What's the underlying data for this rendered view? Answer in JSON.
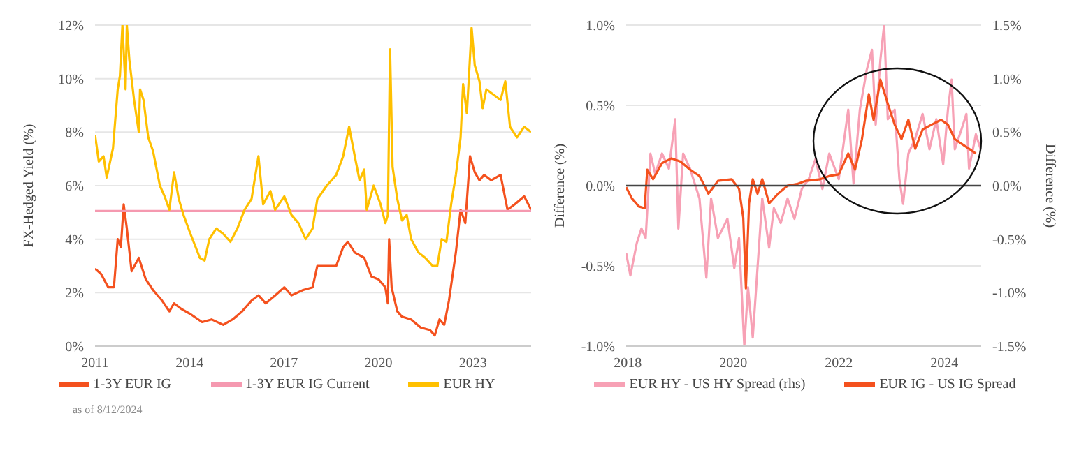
{
  "chart_data": [
    {
      "type": "line",
      "ylabel": "FX-Hedged Yield (%)",
      "xlim": [
        2011,
        2024.85
      ],
      "xticks": [
        2011,
        2014,
        2017,
        2020,
        2023
      ],
      "ylim": [
        0,
        12
      ],
      "yticks": [
        {
          "value": 0,
          "label": "0%"
        },
        {
          "value": 2,
          "label": "2%"
        },
        {
          "value": 4,
          "label": "4%"
        },
        {
          "value": 6,
          "label": "6%"
        },
        {
          "value": 8,
          "label": "8%"
        },
        {
          "value": 10,
          "label": "10%"
        },
        {
          "value": 12,
          "label": "12%"
        }
      ],
      "grid": "y",
      "legend": "bottom",
      "annotations": [
        "as of 8/12/2024"
      ],
      "series": [
        {
          "name": "1-3Y EUR IG",
          "color": "#f4511e",
          "x": [
            2011.0,
            2011.19,
            2011.42,
            2011.6,
            2011.72,
            2011.82,
            2011.91,
            2012.01,
            2012.16,
            2012.39,
            2012.61,
            2012.84,
            2013.13,
            2013.36,
            2013.51,
            2013.73,
            2014.03,
            2014.4,
            2014.7,
            2015.07,
            2015.37,
            2015.67,
            2015.97,
            2016.19,
            2016.42,
            2016.72,
            2017.01,
            2017.24,
            2017.61,
            2017.91,
            2018.06,
            2018.36,
            2018.66,
            2018.88,
            2019.03,
            2019.25,
            2019.55,
            2019.78,
            2020.0,
            2020.22,
            2020.3,
            2020.34,
            2020.42,
            2020.6,
            2020.75,
            2021.04,
            2021.34,
            2021.64,
            2021.79,
            2021.94,
            2022.09,
            2022.24,
            2022.46,
            2022.61,
            2022.76,
            2022.91,
            2023.06,
            2023.21,
            2023.36,
            2023.58,
            2023.88,
            2024.1,
            2024.33,
            2024.63,
            2024.85
          ],
          "values": [
            2.9,
            2.7,
            2.2,
            2.2,
            4.0,
            3.7,
            5.3,
            4.4,
            2.8,
            3.3,
            2.5,
            2.1,
            1.7,
            1.3,
            1.6,
            1.4,
            1.2,
            0.9,
            1.0,
            0.8,
            1.0,
            1.3,
            1.7,
            1.9,
            1.6,
            1.9,
            2.2,
            1.9,
            2.1,
            2.2,
            3.0,
            3.0,
            3.0,
            3.7,
            3.9,
            3.5,
            3.3,
            2.6,
            2.5,
            2.2,
            1.6,
            4.0,
            2.2,
            1.3,
            1.1,
            1.0,
            0.7,
            0.6,
            0.4,
            1.0,
            0.8,
            1.7,
            3.5,
            5.1,
            4.6,
            7.1,
            6.5,
            6.2,
            6.4,
            6.2,
            6.4,
            5.1,
            5.3,
            5.6,
            5.1
          ]
        },
        {
          "name": "1-3Y EUR IG Current",
          "color": "#f599b0",
          "x": [
            2011,
            2024.85
          ],
          "values": [
            5.05,
            5.05
          ]
        },
        {
          "name": "EUR HY",
          "color": "#ffc000",
          "x": [
            2011.0,
            2011.12,
            2011.27,
            2011.37,
            2011.57,
            2011.72,
            2011.79,
            2011.87,
            2011.97,
            2012.01,
            2012.09,
            2012.24,
            2012.39,
            2012.43,
            2012.54,
            2012.69,
            2012.84,
            2013.06,
            2013.21,
            2013.36,
            2013.51,
            2013.66,
            2013.81,
            2014.03,
            2014.33,
            2014.48,
            2014.63,
            2014.85,
            2015.07,
            2015.3,
            2015.52,
            2015.75,
            2015.97,
            2016.19,
            2016.34,
            2016.57,
            2016.72,
            2017.01,
            2017.24,
            2017.46,
            2017.69,
            2017.91,
            2018.06,
            2018.36,
            2018.66,
            2018.88,
            2019.07,
            2019.25,
            2019.4,
            2019.55,
            2019.63,
            2019.85,
            2020.07,
            2020.22,
            2020.3,
            2020.37,
            2020.45,
            2020.6,
            2020.75,
            2020.9,
            2021.04,
            2021.27,
            2021.49,
            2021.72,
            2021.87,
            2022.01,
            2022.16,
            2022.31,
            2022.46,
            2022.61,
            2022.69,
            2022.81,
            2022.96,
            2023.06,
            2023.21,
            2023.31,
            2023.43,
            2023.66,
            2023.88,
            2024.03,
            2024.18,
            2024.4,
            2024.63,
            2024.85
          ],
          "values": [
            7.9,
            6.9,
            7.1,
            6.3,
            7.4,
            9.6,
            10.1,
            12.0,
            9.6,
            12.0,
            10.7,
            9.2,
            8.0,
            9.6,
            9.2,
            7.8,
            7.3,
            6.0,
            5.6,
            5.1,
            6.5,
            5.5,
            4.9,
            4.2,
            3.3,
            3.2,
            4.0,
            4.4,
            4.2,
            3.9,
            4.4,
            5.1,
            5.5,
            7.1,
            5.3,
            5.8,
            5.1,
            5.6,
            4.9,
            4.6,
            4.0,
            4.4,
            5.5,
            6.0,
            6.4,
            7.1,
            8.2,
            7.1,
            6.2,
            6.6,
            5.1,
            6.0,
            5.3,
            4.6,
            4.9,
            11.1,
            6.7,
            5.5,
            4.7,
            4.9,
            4.0,
            3.5,
            3.3,
            3.0,
            3.0,
            4.0,
            3.9,
            5.3,
            6.4,
            7.8,
            9.8,
            8.7,
            11.9,
            10.5,
            9.9,
            8.9,
            9.6,
            9.4,
            9.2,
            9.9,
            8.2,
            7.8,
            8.2,
            8.0
          ]
        }
      ]
    },
    {
      "type": "line",
      "ylabel": "Difference (%)",
      "y2label": "Difference (%)",
      "xlim": [
        2017.97,
        2024.7
      ],
      "xticks": [
        2018,
        2020,
        2022,
        2024
      ],
      "ylim": [
        -1,
        1
      ],
      "yticks": [
        {
          "value": -1,
          "label": "-1.0%"
        },
        {
          "value": -0.5,
          "label": "-0.5%"
        },
        {
          "value": 0,
          "label": "0.0%"
        },
        {
          "value": 0.5,
          "label": "0.5%"
        },
        {
          "value": 1,
          "label": "1.0%"
        }
      ],
      "y2lim": [
        -1.5,
        1.5
      ],
      "y2ticks": [
        {
          "value": -1.5,
          "label": "-1.5%"
        },
        {
          "value": -1,
          "label": "-1.0%"
        },
        {
          "value": -0.5,
          "label": "-0.5%"
        },
        {
          "value": 0,
          "label": "0.0%"
        },
        {
          "value": 0.5,
          "label": "0.5%"
        },
        {
          "value": 1,
          "label": "1.0%"
        },
        {
          "value": 1.5,
          "label": "1.5%"
        }
      ],
      "grid": "y",
      "legend": "bottom",
      "ref_lines": [
        {
          "axis": "y",
          "value": 0,
          "color": "#444444"
        }
      ],
      "series": [
        {
          "name": "EUR HY - US HY Spread (rhs)",
          "color": "#f7a1b5",
          "axis": "y2",
          "x": [
            2017.97,
            2018.05,
            2018.17,
            2018.26,
            2018.34,
            2018.43,
            2018.52,
            2018.65,
            2018.78,
            2018.9,
            2018.96,
            2019.05,
            2019.18,
            2019.36,
            2019.49,
            2019.58,
            2019.71,
            2019.89,
            2020.02,
            2020.11,
            2020.21,
            2020.28,
            2020.37,
            2020.46,
            2020.55,
            2020.68,
            2020.77,
            2020.9,
            2021.03,
            2021.16,
            2021.3,
            2021.43,
            2021.56,
            2021.69,
            2021.82,
            2022.0,
            2022.18,
            2022.28,
            2022.4,
            2022.53,
            2022.63,
            2022.7,
            2022.79,
            2022.86,
            2022.93,
            2023.06,
            2023.15,
            2023.22,
            2023.32,
            2023.45,
            2023.59,
            2023.72,
            2023.85,
            2023.98,
            2024.07,
            2024.14,
            2024.2,
            2024.33,
            2024.42,
            2024.47,
            2024.6,
            2024.69
          ],
          "values": [
            -0.63,
            -0.84,
            -0.54,
            -0.4,
            -0.49,
            0.3,
            0.11,
            0.3,
            0.16,
            0.62,
            -0.4,
            0.3,
            0.16,
            -0.12,
            -0.86,
            -0.12,
            -0.49,
            -0.31,
            -0.77,
            -0.49,
            -1.5,
            -0.95,
            -1.42,
            -0.77,
            -0.12,
            -0.58,
            -0.21,
            -0.35,
            -0.12,
            -0.31,
            -0.03,
            0.06,
            0.25,
            -0.03,
            0.3,
            0.06,
            0.71,
            0.02,
            0.71,
            1.08,
            1.27,
            0.57,
            1.18,
            1.5,
            0.62,
            0.71,
            0.06,
            -0.17,
            0.3,
            0.44,
            0.67,
            0.34,
            0.62,
            0.2,
            0.71,
            0.99,
            0.34,
            0.53,
            0.67,
            0.16,
            0.48,
            0.34
          ]
        },
        {
          "name": "EUR IG - US IG Spread",
          "color": "#f4511e",
          "x": [
            2017.97,
            2018.08,
            2018.21,
            2018.32,
            2018.37,
            2018.48,
            2018.65,
            2018.83,
            2019.0,
            2019.18,
            2019.36,
            2019.53,
            2019.71,
            2019.97,
            2020.11,
            2020.19,
            2020.24,
            2020.3,
            2020.37,
            2020.46,
            2020.55,
            2020.68,
            2020.85,
            2021.03,
            2021.21,
            2021.38,
            2021.65,
            2021.82,
            2022.0,
            2022.18,
            2022.31,
            2022.44,
            2022.57,
            2022.66,
            2022.79,
            2022.93,
            2023.06,
            2023.19,
            2023.32,
            2023.45,
            2023.59,
            2023.76,
            2023.94,
            2024.07,
            2024.2,
            2024.33,
            2024.47,
            2024.6
          ],
          "values": [
            -0.01,
            -0.08,
            -0.13,
            -0.14,
            0.1,
            0.04,
            0.14,
            0.17,
            0.15,
            0.1,
            0.06,
            -0.05,
            0.03,
            0.04,
            -0.02,
            -0.2,
            -0.64,
            -0.11,
            0.04,
            -0.05,
            0.04,
            -0.11,
            -0.05,
            0.0,
            0.01,
            0.03,
            0.04,
            0.06,
            0.07,
            0.2,
            0.1,
            0.29,
            0.57,
            0.41,
            0.66,
            0.51,
            0.38,
            0.29,
            0.41,
            0.23,
            0.35,
            0.38,
            0.41,
            0.38,
            0.29,
            0.26,
            0.23,
            0.2
          ]
        }
      ]
    }
  ]
}
